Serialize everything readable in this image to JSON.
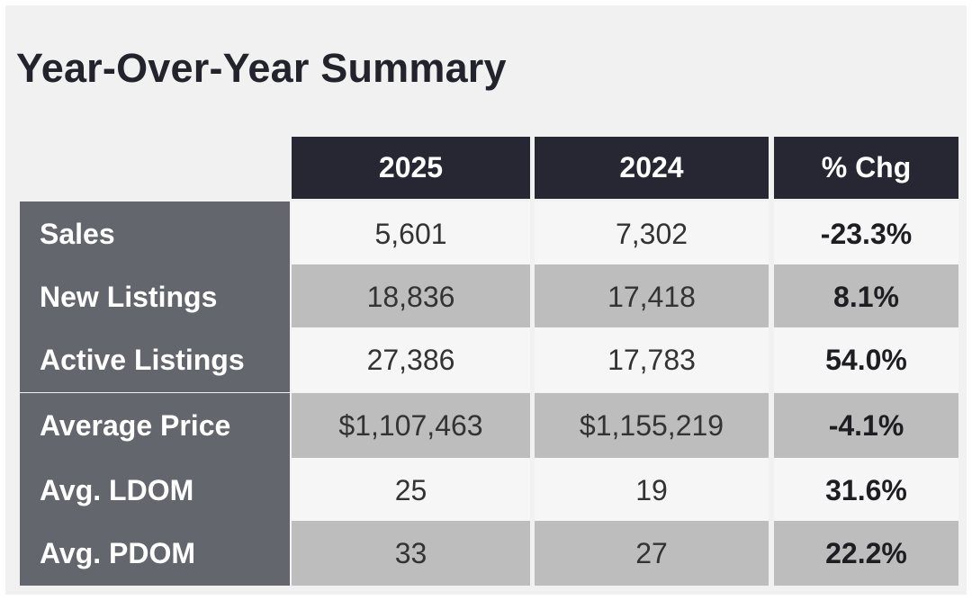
{
  "title": "Year-Over-Year Summary",
  "chart_data": {
    "type": "table",
    "columns": [
      "2025",
      "2024",
      "% Chg"
    ],
    "rows": [
      {
        "label": "Sales",
        "values": [
          "5,601",
          "7,302",
          "-23.3%"
        ]
      },
      {
        "label": "New Listings",
        "values": [
          "18,836",
          "17,418",
          "8.1%"
        ]
      },
      {
        "label": "Active Listings",
        "values": [
          "27,386",
          "17,783",
          "54.0%"
        ]
      },
      {
        "label": "Average Price",
        "values": [
          "$1,107,463",
          "$1,155,219",
          "-4.1%"
        ]
      },
      {
        "label": "Avg. LDOM",
        "values": [
          "25",
          "19",
          "31.6%"
        ]
      },
      {
        "label": "Avg. PDOM",
        "values": [
          "33",
          "27",
          "22.2%"
        ]
      }
    ]
  },
  "colors": {
    "header_bg": "#272733",
    "label_bg": "#64666e",
    "row_light": "#f6f6f6",
    "row_dark": "#bdbdbd"
  }
}
